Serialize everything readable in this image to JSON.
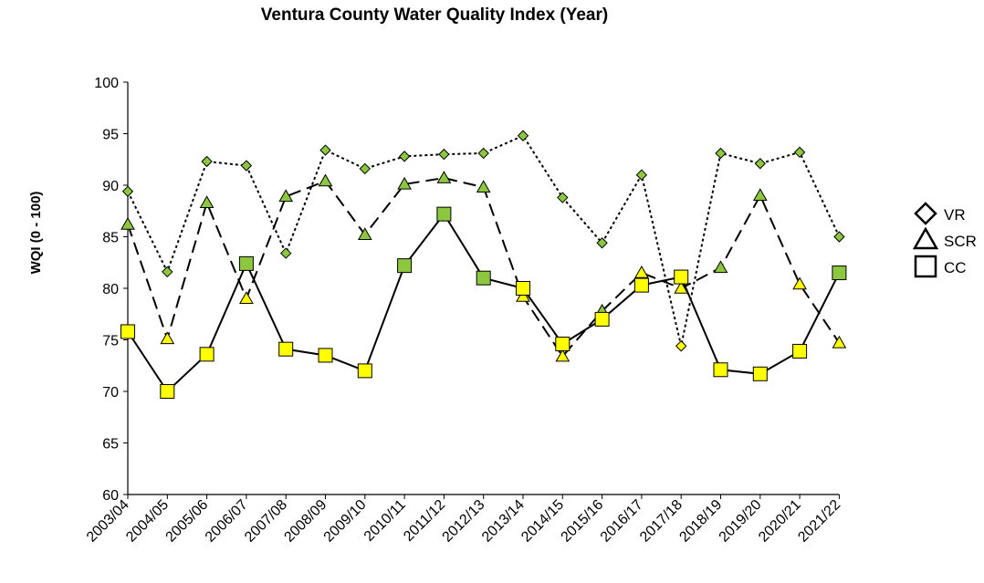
{
  "chart_data": {
    "type": "line",
    "title": "Ventura County Water Quality Index (Year)",
    "xlabel": "",
    "ylabel": "WQI (0 - 100)",
    "ylim": [
      60,
      100
    ],
    "yticks": [
      60,
      65,
      70,
      75,
      80,
      85,
      90,
      95,
      100
    ],
    "grid": false,
    "legend_position": "right",
    "categories": [
      "2003/04",
      "2004/05",
      "2005/06",
      "2006/07",
      "2007/08",
      "2008/09",
      "2009/10",
      "2010/11",
      "2011/12",
      "2012/13",
      "2013/14",
      "2014/15",
      "2015/16",
      "2016/17",
      "2017/18",
      "2018/19",
      "2019/20",
      "2020/21",
      "2021/22"
    ],
    "series": [
      {
        "name": "VR",
        "marker": "diamond",
        "line_style": "dotted",
        "values": [
          89.4,
          81.6,
          92.3,
          91.9,
          83.4,
          93.4,
          91.6,
          92.8,
          93.0,
          93.1,
          94.8,
          88.8,
          84.4,
          91.0,
          74.4,
          93.1,
          92.1,
          93.2,
          85.0
        ],
        "marker_colors": [
          "green",
          "green",
          "green",
          "green",
          "green",
          "green",
          "green",
          "green",
          "green",
          "green",
          "green",
          "green",
          "green",
          "green",
          "yellow",
          "green",
          "green",
          "green",
          "green"
        ]
      },
      {
        "name": "SCR",
        "marker": "triangle",
        "line_style": "dashed",
        "values": [
          86.2,
          75.1,
          88.3,
          79.0,
          88.9,
          90.4,
          85.2,
          90.1,
          90.7,
          89.8,
          79.2,
          73.4,
          77.8,
          81.5,
          80.0,
          82.0,
          89.0,
          80.4,
          74.7
        ],
        "marker_colors": [
          "green",
          "yellow",
          "green",
          "yellow",
          "green",
          "green",
          "green",
          "green",
          "green",
          "green",
          "yellow",
          "yellow",
          "green",
          "yellow",
          "yellow",
          "green",
          "green",
          "yellow",
          "yellow"
        ]
      },
      {
        "name": "CC",
        "marker": "square",
        "line_style": "solid",
        "values": [
          75.8,
          70.0,
          73.6,
          82.4,
          74.1,
          73.5,
          72.0,
          82.2,
          87.2,
          81.0,
          80.0,
          74.6,
          77.0,
          80.3,
          81.1,
          72.1,
          71.7,
          73.9,
          81.5
        ],
        "marker_colors": [
          "yellow",
          "yellow",
          "yellow",
          "green",
          "yellow",
          "yellow",
          "yellow",
          "green",
          "green",
          "green",
          "yellow",
          "yellow",
          "yellow",
          "yellow",
          "yellow",
          "yellow",
          "yellow",
          "yellow",
          "green"
        ]
      }
    ]
  },
  "colors": {
    "green": "#8dc63f",
    "yellow": "#ffff00",
    "stroke": "#000000"
  }
}
